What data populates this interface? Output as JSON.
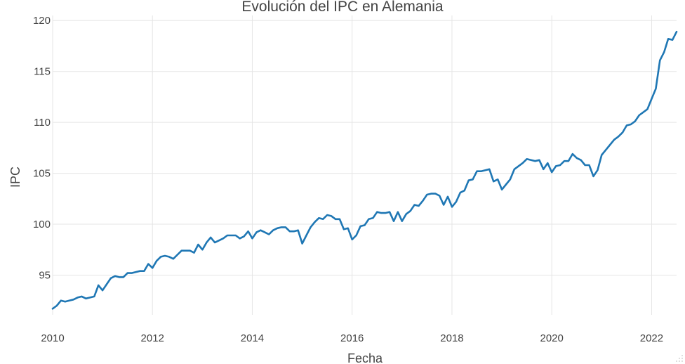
{
  "chart_data": {
    "type": "line",
    "title": "Evolución del IPC en Alemania",
    "xlabel": "Fecha",
    "ylabel": "IPC",
    "x_type": "date",
    "xlim": [
      "2010-01",
      "2022-07"
    ],
    "ylim": [
      91.1,
      120.5
    ],
    "x_ticks": [
      {
        "date": "2010-01",
        "label": "2010"
      },
      {
        "date": "2012-01",
        "label": "2012"
      },
      {
        "date": "2014-01",
        "label": "2014"
      },
      {
        "date": "2016-01",
        "label": "2016"
      },
      {
        "date": "2018-01",
        "label": "2018"
      },
      {
        "date": "2020-01",
        "label": "2020"
      },
      {
        "date": "2022-01",
        "label": "2022"
      }
    ],
    "y_ticks": [
      95,
      100,
      105,
      110,
      115,
      120
    ],
    "grid": true,
    "legend": "none",
    "colors": {
      "line": "#1f77b4",
      "grid": "#e5e5e5",
      "text": "#444444"
    },
    "series": [
      {
        "x": [
          "2010-01",
          "2010-02",
          "2010-03",
          "2010-04",
          "2010-05",
          "2010-06",
          "2010-07",
          "2010-08",
          "2010-09",
          "2010-10",
          "2010-11",
          "2010-12",
          "2011-01",
          "2011-02",
          "2011-03",
          "2011-04",
          "2011-05",
          "2011-06",
          "2011-07",
          "2011-08",
          "2011-09",
          "2011-10",
          "2011-11",
          "2011-12",
          "2012-01",
          "2012-02",
          "2012-03",
          "2012-04",
          "2012-05",
          "2012-06",
          "2012-07",
          "2012-08",
          "2012-09",
          "2012-10",
          "2012-11",
          "2012-12",
          "2013-01",
          "2013-02",
          "2013-03",
          "2013-04",
          "2013-05",
          "2013-06",
          "2013-07",
          "2013-08",
          "2013-09",
          "2013-10",
          "2013-11",
          "2013-12",
          "2014-01",
          "2014-02",
          "2014-03",
          "2014-04",
          "2014-05",
          "2014-06",
          "2014-07",
          "2014-08",
          "2014-09",
          "2014-10",
          "2014-11",
          "2014-12",
          "2015-01",
          "2015-02",
          "2015-03",
          "2015-04",
          "2015-05",
          "2015-06",
          "2015-07",
          "2015-08",
          "2015-09",
          "2015-10",
          "2015-11",
          "2015-12",
          "2016-01",
          "2016-02",
          "2016-03",
          "2016-04",
          "2016-05",
          "2016-06",
          "2016-07",
          "2016-08",
          "2016-09",
          "2016-10",
          "2016-11",
          "2016-12",
          "2017-01",
          "2017-02",
          "2017-03",
          "2017-04",
          "2017-05",
          "2017-06",
          "2017-07",
          "2017-08",
          "2017-09",
          "2017-10",
          "2017-11",
          "2017-12",
          "2018-01",
          "2018-02",
          "2018-03",
          "2018-04",
          "2018-05",
          "2018-06",
          "2018-07",
          "2018-08",
          "2018-09",
          "2018-10",
          "2018-11",
          "2018-12",
          "2019-01",
          "2019-02",
          "2019-03",
          "2019-04",
          "2019-05",
          "2019-06",
          "2019-07",
          "2019-08",
          "2019-09",
          "2019-10",
          "2019-11",
          "2019-12",
          "2020-01",
          "2020-02",
          "2020-03",
          "2020-04",
          "2020-05",
          "2020-06",
          "2020-07",
          "2020-08",
          "2020-09",
          "2020-10",
          "2020-11",
          "2020-12",
          "2021-01",
          "2021-02",
          "2021-03",
          "2021-04",
          "2021-05",
          "2021-06",
          "2021-07",
          "2021-08",
          "2021-09",
          "2021-10",
          "2021-11",
          "2021-12",
          "2022-01",
          "2022-02",
          "2022-03",
          "2022-04",
          "2022-05",
          "2022-06",
          "2022-07"
        ],
        "values": [
          91.7,
          92.0,
          92.5,
          92.4,
          92.5,
          92.6,
          92.8,
          92.9,
          92.7,
          92.8,
          92.9,
          94.0,
          93.5,
          94.1,
          94.7,
          94.9,
          94.8,
          94.8,
          95.2,
          95.2,
          95.3,
          95.4,
          95.4,
          96.1,
          95.7,
          96.4,
          96.8,
          96.9,
          96.8,
          96.6,
          97.0,
          97.4,
          97.4,
          97.4,
          97.2,
          98.0,
          97.5,
          98.2,
          98.7,
          98.2,
          98.4,
          98.6,
          98.9,
          98.9,
          98.9,
          98.6,
          98.8,
          99.3,
          98.6,
          99.2,
          99.4,
          99.2,
          99.0,
          99.4,
          99.6,
          99.7,
          99.7,
          99.3,
          99.3,
          99.4,
          98.1,
          98.9,
          99.7,
          100.2,
          100.6,
          100.5,
          100.9,
          100.8,
          100.5,
          100.5,
          99.5,
          99.6,
          98.5,
          98.9,
          99.8,
          99.9,
          100.5,
          100.6,
          101.2,
          101.1,
          101.1,
          101.2,
          100.3,
          101.2,
          100.3,
          101.0,
          101.3,
          101.9,
          101.8,
          102.3,
          102.9,
          103.0,
          103.0,
          102.8,
          101.9,
          102.7,
          101.7,
          102.2,
          103.1,
          103.3,
          104.3,
          104.4,
          105.2,
          105.2,
          105.3,
          105.4,
          104.2,
          104.4,
          103.4,
          103.9,
          104.4,
          105.4,
          105.7,
          106.0,
          106.4,
          106.3,
          106.2,
          106.3,
          105.4,
          106.0,
          105.1,
          105.7,
          105.8,
          106.2,
          106.2,
          106.9,
          106.5,
          106.3,
          105.8,
          105.8,
          104.7,
          105.3,
          106.8,
          107.3,
          107.8,
          108.3,
          108.6,
          109.0,
          109.7,
          109.8,
          110.1,
          110.7,
          111.0,
          111.3,
          112.3,
          113.3,
          116.1,
          116.9,
          118.2,
          118.1,
          118.9
        ]
      }
    ]
  }
}
